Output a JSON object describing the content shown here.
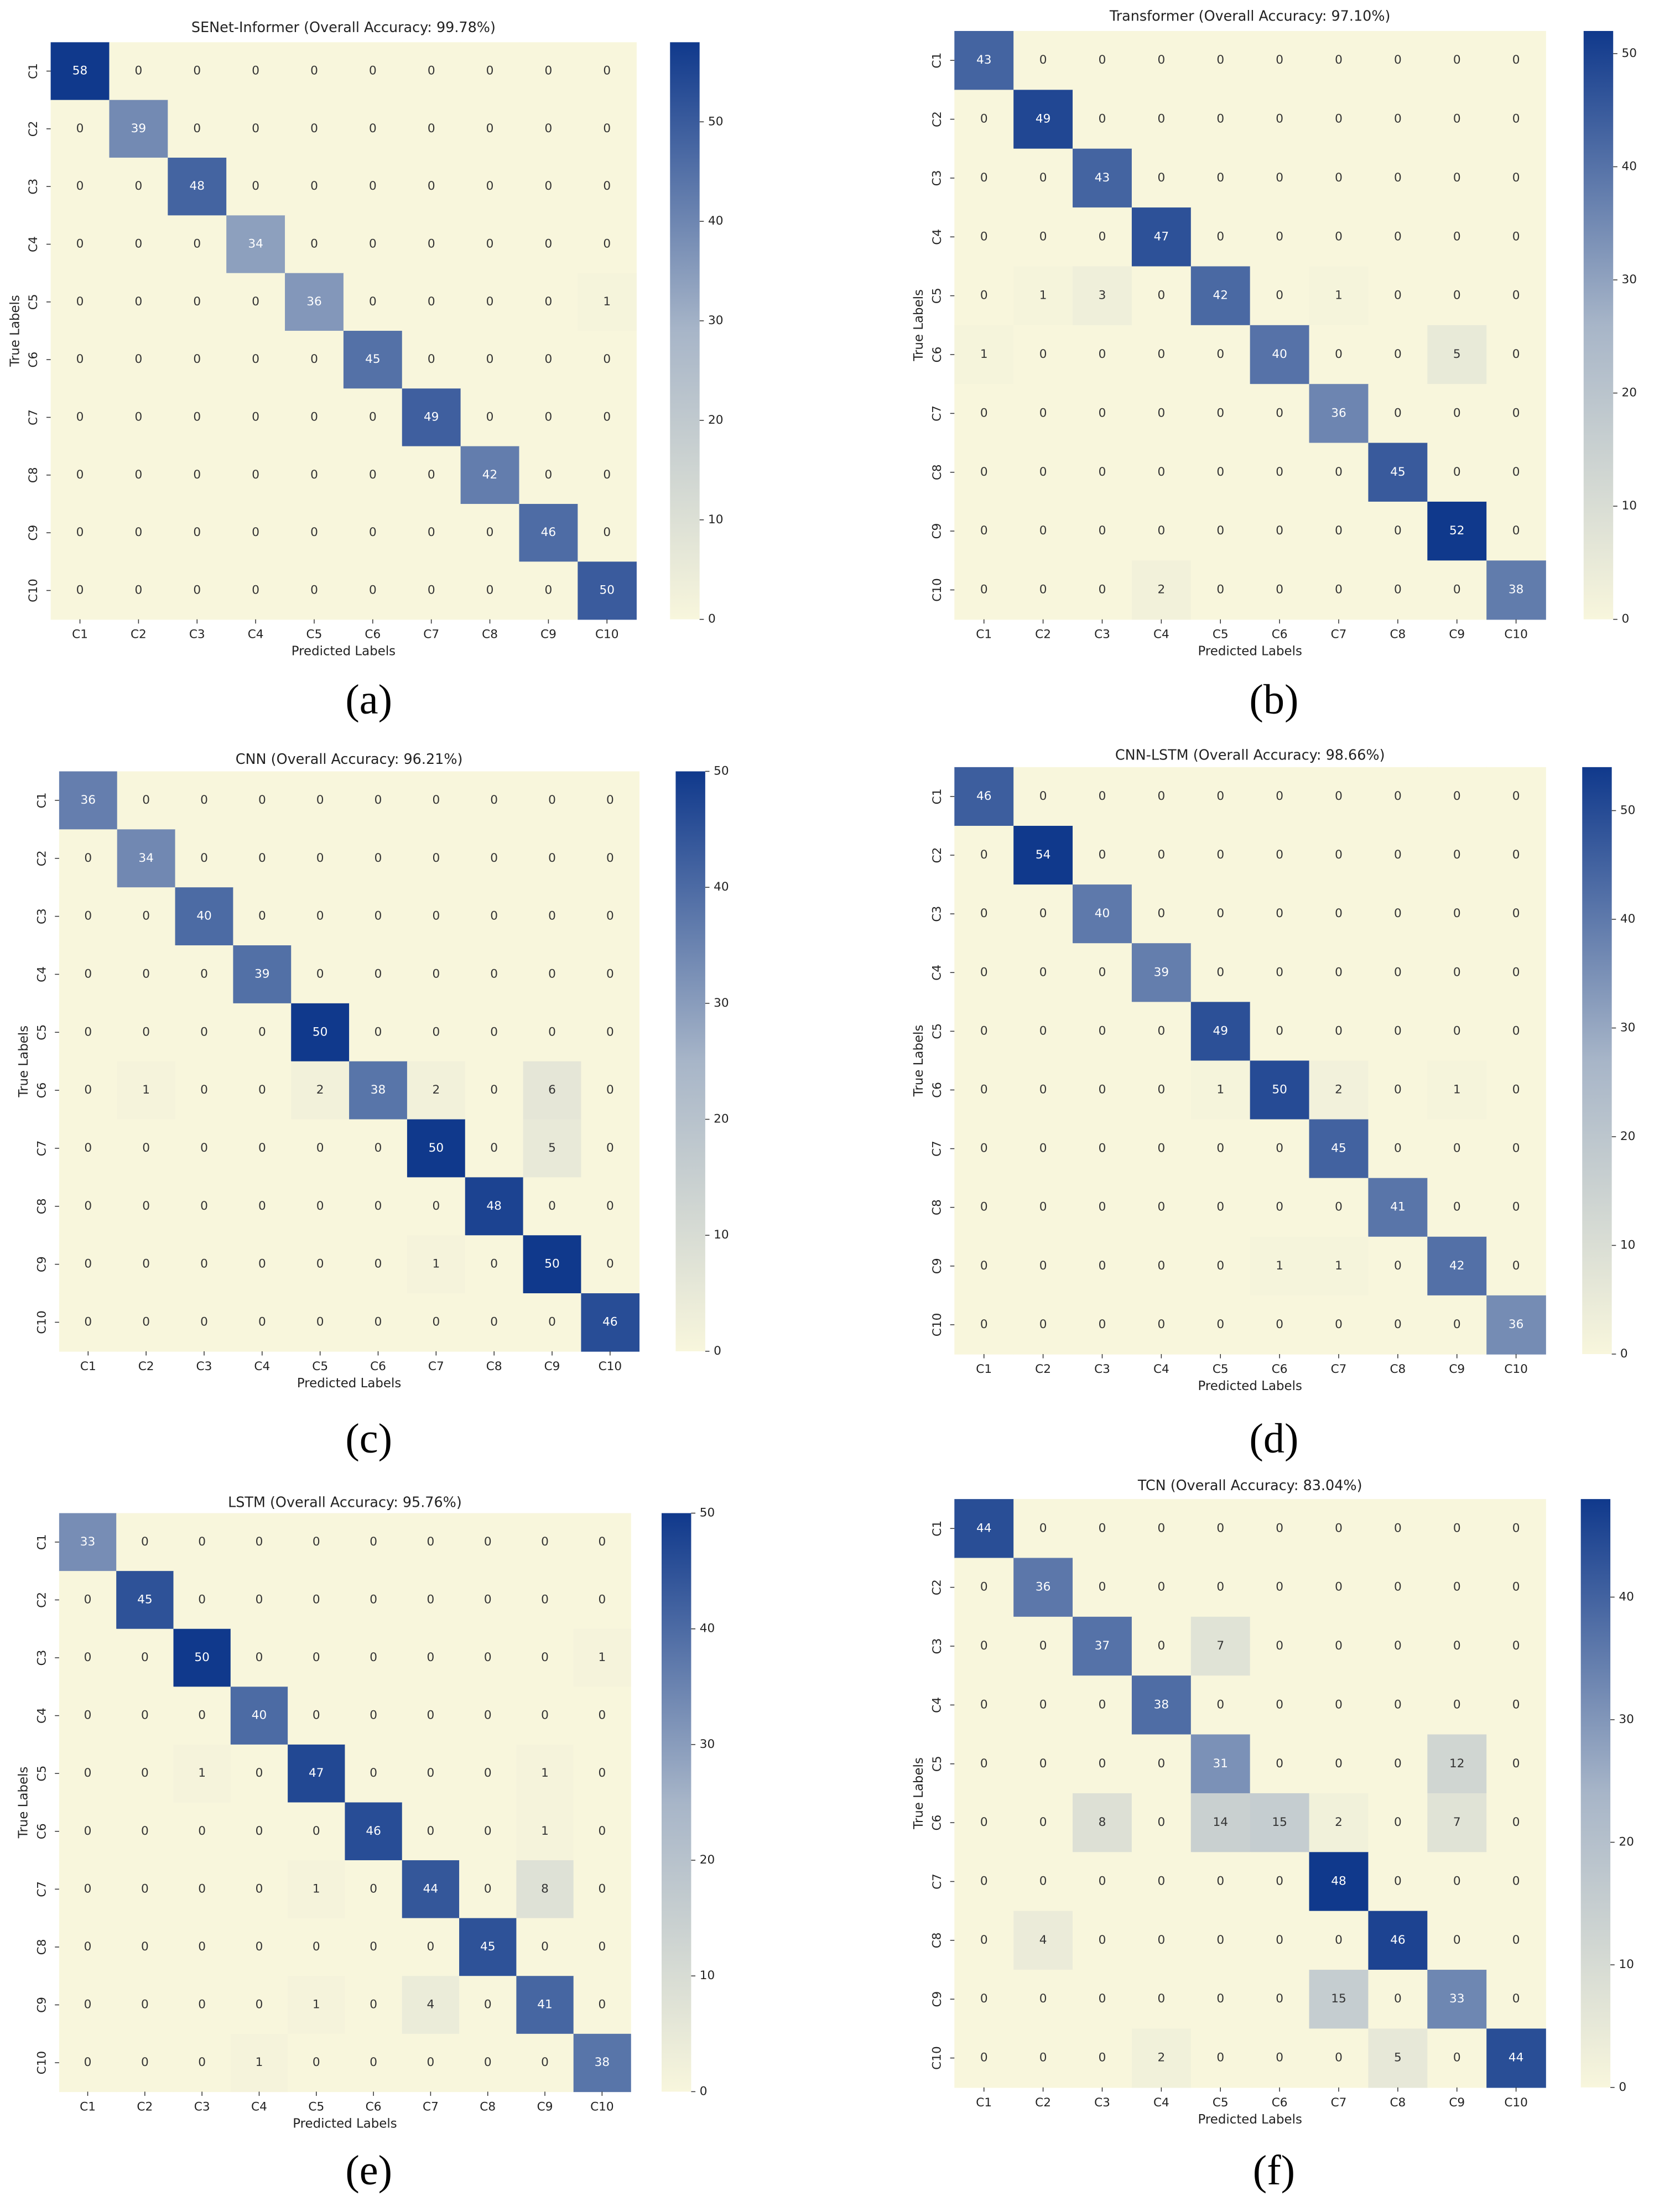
{
  "chart_data": [
    {
      "type": "heatmap",
      "title": "SENet-Informer (Overall Accuracy: 99.78%)",
      "xlabel": "Predicted Labels",
      "ylabel": "True Labels",
      "panel_label": "(a)",
      "categories": [
        "C1",
        "C2",
        "C3",
        "C4",
        "C5",
        "C6",
        "C7",
        "C8",
        "C9",
        "C10"
      ],
      "values": [
        [
          58,
          0,
          0,
          0,
          0,
          0,
          0,
          0,
          0,
          0
        ],
        [
          0,
          39,
          0,
          0,
          0,
          0,
          0,
          0,
          0,
          0
        ],
        [
          0,
          0,
          48,
          0,
          0,
          0,
          0,
          0,
          0,
          0
        ],
        [
          0,
          0,
          0,
          34,
          0,
          0,
          0,
          0,
          0,
          0
        ],
        [
          0,
          0,
          0,
          0,
          36,
          0,
          0,
          0,
          0,
          1
        ],
        [
          0,
          0,
          0,
          0,
          0,
          45,
          0,
          0,
          0,
          0
        ],
        [
          0,
          0,
          0,
          0,
          0,
          0,
          49,
          0,
          0,
          0
        ],
        [
          0,
          0,
          0,
          0,
          0,
          0,
          0,
          42,
          0,
          0
        ],
        [
          0,
          0,
          0,
          0,
          0,
          0,
          0,
          0,
          46,
          0
        ],
        [
          0,
          0,
          0,
          0,
          0,
          0,
          0,
          0,
          0,
          50
        ]
      ],
      "clim": [
        0,
        58
      ],
      "cticks": [
        0,
        10,
        20,
        30,
        40,
        50
      ],
      "colormap": [
        "#f8f6dc",
        "#a7b5c8",
        "#10398c"
      ]
    },
    {
      "type": "heatmap",
      "title": "Transformer (Overall Accuracy: 97.10%)",
      "xlabel": "Predicted Labels",
      "ylabel": "True Labels",
      "panel_label": "(b)",
      "categories": [
        "C1",
        "C2",
        "C3",
        "C4",
        "C5",
        "C6",
        "C7",
        "C8",
        "C9",
        "C10"
      ],
      "values": [
        [
          43,
          0,
          0,
          0,
          0,
          0,
          0,
          0,
          0,
          0
        ],
        [
          0,
          49,
          0,
          0,
          0,
          0,
          0,
          0,
          0,
          0
        ],
        [
          0,
          0,
          43,
          0,
          0,
          0,
          0,
          0,
          0,
          0
        ],
        [
          0,
          0,
          0,
          47,
          0,
          0,
          0,
          0,
          0,
          0
        ],
        [
          0,
          1,
          3,
          0,
          42,
          0,
          1,
          0,
          0,
          0
        ],
        [
          1,
          0,
          0,
          0,
          0,
          40,
          0,
          0,
          5,
          0
        ],
        [
          0,
          0,
          0,
          0,
          0,
          0,
          36,
          0,
          0,
          0
        ],
        [
          0,
          0,
          0,
          0,
          0,
          0,
          0,
          45,
          0,
          0
        ],
        [
          0,
          0,
          0,
          0,
          0,
          0,
          0,
          0,
          52,
          0
        ],
        [
          0,
          0,
          0,
          2,
          0,
          0,
          0,
          0,
          0,
          38
        ]
      ],
      "clim": [
        0,
        52
      ],
      "cticks": [
        0,
        10,
        20,
        30,
        40,
        50
      ],
      "colormap": [
        "#f8f6dc",
        "#a7b5c8",
        "#10398c"
      ]
    },
    {
      "type": "heatmap",
      "title": "CNN (Overall Accuracy: 96.21%)",
      "xlabel": "Predicted Labels",
      "ylabel": "True Labels",
      "panel_label": "(c)",
      "categories": [
        "C1",
        "C2",
        "C3",
        "C4",
        "C5",
        "C6",
        "C7",
        "C8",
        "C9",
        "C10"
      ],
      "values": [
        [
          36,
          0,
          0,
          0,
          0,
          0,
          0,
          0,
          0,
          0
        ],
        [
          0,
          34,
          0,
          0,
          0,
          0,
          0,
          0,
          0,
          0
        ],
        [
          0,
          0,
          40,
          0,
          0,
          0,
          0,
          0,
          0,
          0
        ],
        [
          0,
          0,
          0,
          39,
          0,
          0,
          0,
          0,
          0,
          0
        ],
        [
          0,
          0,
          0,
          0,
          50,
          0,
          0,
          0,
          0,
          0
        ],
        [
          0,
          1,
          0,
          0,
          2,
          38,
          2,
          0,
          6,
          0
        ],
        [
          0,
          0,
          0,
          0,
          0,
          0,
          50,
          0,
          5,
          0
        ],
        [
          0,
          0,
          0,
          0,
          0,
          0,
          0,
          48,
          0,
          0
        ],
        [
          0,
          0,
          0,
          0,
          0,
          0,
          1,
          0,
          50,
          0
        ],
        [
          0,
          0,
          0,
          0,
          0,
          0,
          0,
          0,
          0,
          46
        ]
      ],
      "clim": [
        0,
        50
      ],
      "cticks": [
        0,
        10,
        20,
        30,
        40,
        50
      ],
      "colormap": [
        "#f8f6dc",
        "#a7b5c8",
        "#10398c"
      ]
    },
    {
      "type": "heatmap",
      "title": "CNN-LSTM (Overall Accuracy: 98.66%)",
      "xlabel": "Predicted Labels",
      "ylabel": "True Labels",
      "panel_label": "(d)",
      "categories": [
        "C1",
        "C2",
        "C3",
        "C4",
        "C5",
        "C6",
        "C7",
        "C8",
        "C9",
        "C10"
      ],
      "values": [
        [
          46,
          0,
          0,
          0,
          0,
          0,
          0,
          0,
          0,
          0
        ],
        [
          0,
          54,
          0,
          0,
          0,
          0,
          0,
          0,
          0,
          0
        ],
        [
          0,
          0,
          40,
          0,
          0,
          0,
          0,
          0,
          0,
          0
        ],
        [
          0,
          0,
          0,
          39,
          0,
          0,
          0,
          0,
          0,
          0
        ],
        [
          0,
          0,
          0,
          0,
          49,
          0,
          0,
          0,
          0,
          0
        ],
        [
          0,
          0,
          0,
          0,
          1,
          50,
          2,
          0,
          1,
          0
        ],
        [
          0,
          0,
          0,
          0,
          0,
          0,
          45,
          0,
          0,
          0
        ],
        [
          0,
          0,
          0,
          0,
          0,
          0,
          0,
          41,
          0,
          0
        ],
        [
          0,
          0,
          0,
          0,
          0,
          1,
          1,
          0,
          42,
          0
        ],
        [
          0,
          0,
          0,
          0,
          0,
          0,
          0,
          0,
          0,
          36
        ]
      ],
      "clim": [
        0,
        54
      ],
      "cticks": [
        0,
        10,
        20,
        30,
        40,
        50
      ],
      "colormap": [
        "#f8f6dc",
        "#a7b5c8",
        "#10398c"
      ]
    },
    {
      "type": "heatmap",
      "title": "LSTM (Overall Accuracy: 95.76%)",
      "xlabel": "Predicted Labels",
      "ylabel": "True Labels",
      "panel_label": "(e)",
      "categories": [
        "C1",
        "C2",
        "C3",
        "C4",
        "C5",
        "C6",
        "C7",
        "C8",
        "C9",
        "C10"
      ],
      "values": [
        [
          33,
          0,
          0,
          0,
          0,
          0,
          0,
          0,
          0,
          0
        ],
        [
          0,
          45,
          0,
          0,
          0,
          0,
          0,
          0,
          0,
          0
        ],
        [
          0,
          0,
          50,
          0,
          0,
          0,
          0,
          0,
          0,
          1
        ],
        [
          0,
          0,
          0,
          40,
          0,
          0,
          0,
          0,
          0,
          0
        ],
        [
          0,
          0,
          1,
          0,
          47,
          0,
          0,
          0,
          1,
          0
        ],
        [
          0,
          0,
          0,
          0,
          0,
          46,
          0,
          0,
          1,
          0
        ],
        [
          0,
          0,
          0,
          0,
          1,
          0,
          44,
          0,
          8,
          0
        ],
        [
          0,
          0,
          0,
          0,
          0,
          0,
          0,
          45,
          0,
          0
        ],
        [
          0,
          0,
          0,
          0,
          1,
          0,
          4,
          0,
          41,
          0
        ],
        [
          0,
          0,
          0,
          1,
          0,
          0,
          0,
          0,
          0,
          38
        ]
      ],
      "clim": [
        0,
        50
      ],
      "cticks": [
        0,
        10,
        20,
        30,
        40,
        50
      ],
      "colormap": [
        "#f8f6dc",
        "#a7b5c8",
        "#10398c"
      ]
    },
    {
      "type": "heatmap",
      "title": "TCN (Overall Accuracy: 83.04%)",
      "xlabel": "Predicted Labels",
      "ylabel": "True Labels",
      "panel_label": "(f)",
      "categories": [
        "C1",
        "C2",
        "C3",
        "C4",
        "C5",
        "C6",
        "C7",
        "C8",
        "C9",
        "C10"
      ],
      "values": [
        [
          44,
          0,
          0,
          0,
          0,
          0,
          0,
          0,
          0,
          0
        ],
        [
          0,
          36,
          0,
          0,
          0,
          0,
          0,
          0,
          0,
          0
        ],
        [
          0,
          0,
          37,
          0,
          7,
          0,
          0,
          0,
          0,
          0
        ],
        [
          0,
          0,
          0,
          38,
          0,
          0,
          0,
          0,
          0,
          0
        ],
        [
          0,
          0,
          0,
          0,
          31,
          0,
          0,
          0,
          12,
          0
        ],
        [
          0,
          0,
          8,
          0,
          14,
          15,
          2,
          0,
          7,
          0
        ],
        [
          0,
          0,
          0,
          0,
          0,
          0,
          48,
          0,
          0,
          0
        ],
        [
          0,
          4,
          0,
          0,
          0,
          0,
          0,
          46,
          0,
          0
        ],
        [
          0,
          0,
          0,
          0,
          0,
          0,
          15,
          0,
          33,
          0
        ],
        [
          0,
          0,
          0,
          2,
          0,
          0,
          0,
          5,
          0,
          44
        ]
      ],
      "clim": [
        0,
        48
      ],
      "cticks": [
        0,
        10,
        20,
        30,
        40
      ],
      "colormap": [
        "#f8f6dc",
        "#a7b5c8",
        "#10398c"
      ]
    }
  ]
}
